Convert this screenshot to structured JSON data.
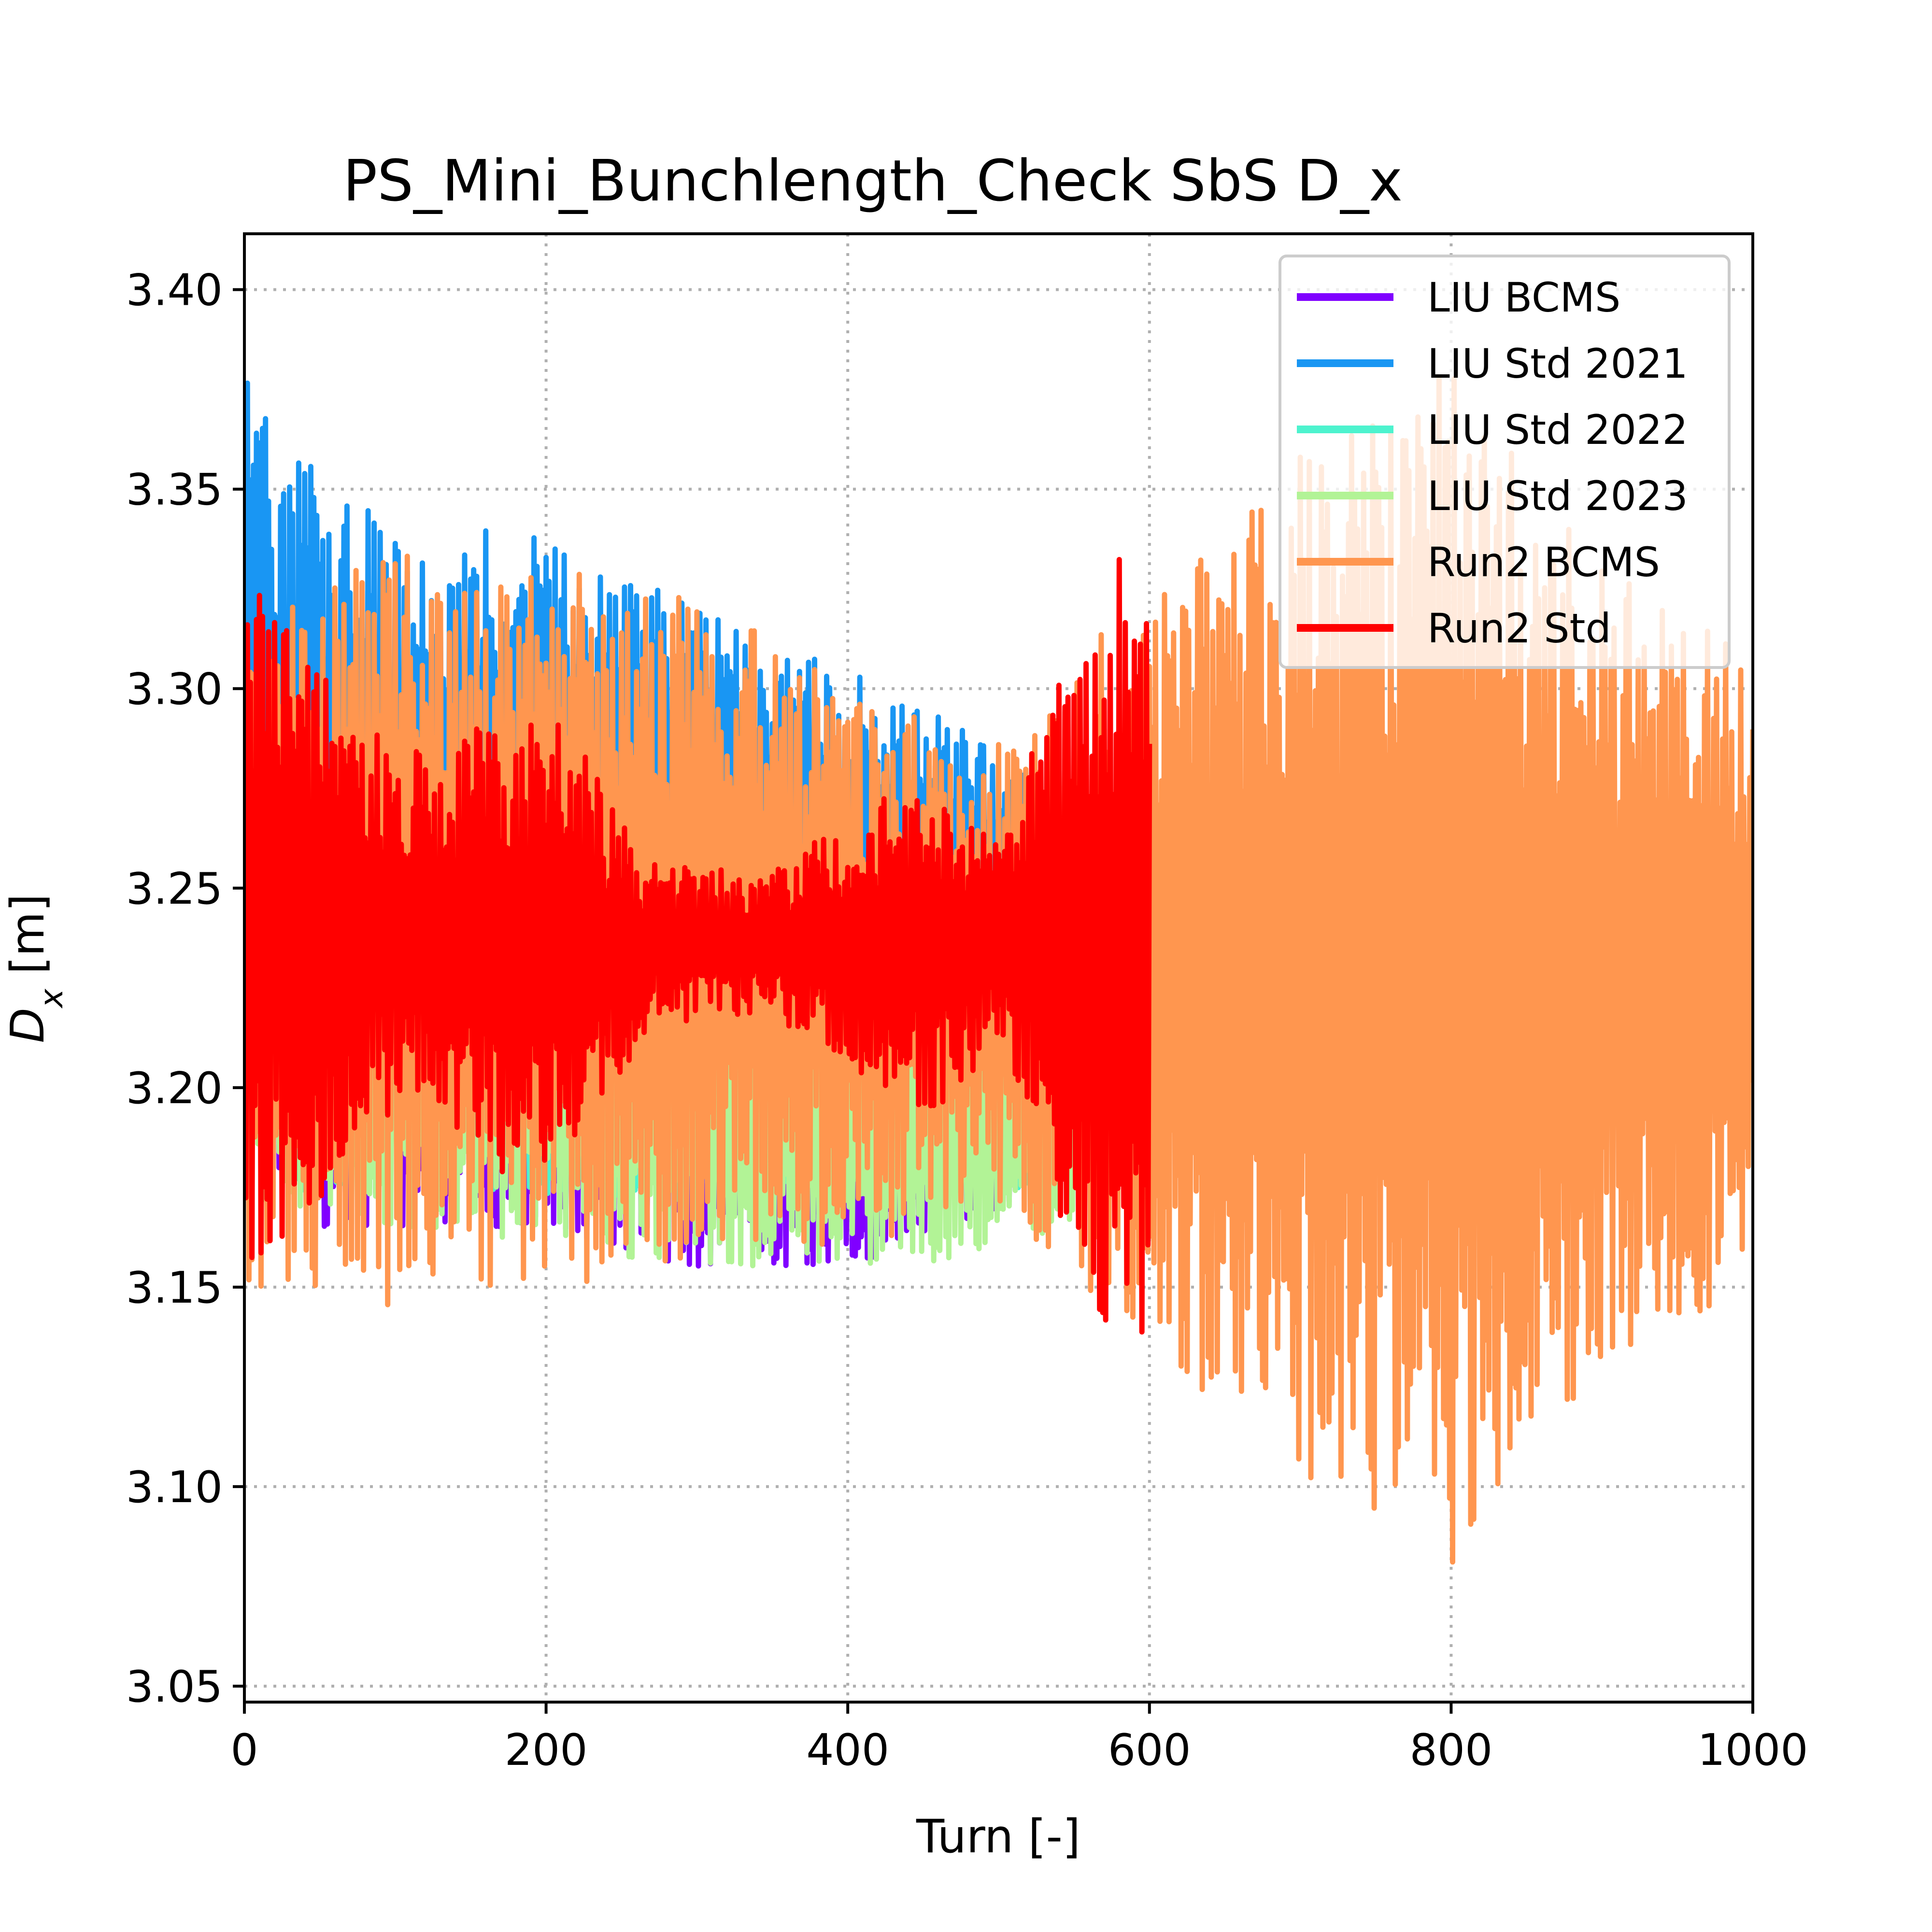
{
  "chart_data": {
    "type": "line",
    "title": "PS_Mini_Bunchlength_Check SbS D_x",
    "xlabel": "Turn [-]",
    "ylabel_main": "D",
    "ylabel_sub": "x",
    "ylabel_unit": " [m]",
    "xlim": [
      0,
      1000
    ],
    "ylim": [
      3.046,
      3.414
    ],
    "xticks": [
      0,
      200,
      400,
      600,
      800,
      1000
    ],
    "xtick_labels": [
      "0",
      "200",
      "400",
      "600",
      "800",
      "1000"
    ],
    "yticks": [
      3.05,
      3.1,
      3.15,
      3.2,
      3.25,
      3.3,
      3.35,
      3.4
    ],
    "ytick_labels": [
      "3.05",
      "3.10",
      "3.15",
      "3.20",
      "3.25",
      "3.30",
      "3.35",
      "3.40"
    ],
    "grid": true,
    "legend_position": "top-right",
    "series": [
      {
        "name": "LIU BCMS",
        "color": "#8000ff",
        "segments": [
          {
            "x": 0,
            "center": 3.22,
            "amp": 0.04
          },
          {
            "x": 50,
            "center": 3.205,
            "amp": 0.04
          },
          {
            "x": 150,
            "center": 3.2,
            "amp": 0.035
          },
          {
            "x": 300,
            "center": 3.19,
            "amp": 0.035
          },
          {
            "x": 400,
            "center": 3.185,
            "amp": 0.03
          },
          {
            "x": 500,
            "center": 3.19,
            "amp": 0.02
          },
          {
            "x": 550,
            "center": 3.2,
            "amp": 0.02
          }
        ]
      },
      {
        "name": "LIU Std 2021",
        "color": "#1996f3",
        "segments": [
          {
            "x": 0,
            "center": 3.29,
            "amp": 0.09
          },
          {
            "x": 100,
            "center": 3.27,
            "amp": 0.07
          },
          {
            "x": 200,
            "center": 3.28,
            "amp": 0.06
          },
          {
            "x": 300,
            "center": 3.27,
            "amp": 0.05
          },
          {
            "x": 400,
            "center": 3.26,
            "amp": 0.045
          },
          {
            "x": 500,
            "center": 3.25,
            "amp": 0.035
          },
          {
            "x": 550,
            "center": 3.24,
            "amp": 0.03
          }
        ]
      },
      {
        "name": "LIU Std 2022",
        "color": "#4df3ce",
        "segments": [
          {
            "x": 0,
            "center": 3.215,
            "amp": 0.045
          },
          {
            "x": 100,
            "center": 3.21,
            "amp": 0.035
          },
          {
            "x": 300,
            "center": 3.205,
            "amp": 0.035
          },
          {
            "x": 450,
            "center": 3.2,
            "amp": 0.03
          },
          {
            "x": 550,
            "center": 3.2,
            "amp": 0.025
          }
        ]
      },
      {
        "name": "LIU Std 2023",
        "color": "#b2f396",
        "segments": [
          {
            "x": 0,
            "center": 3.21,
            "amp": 0.045
          },
          {
            "x": 100,
            "center": 3.205,
            "amp": 0.04
          },
          {
            "x": 300,
            "center": 3.195,
            "amp": 0.04
          },
          {
            "x": 450,
            "center": 3.19,
            "amp": 0.035
          },
          {
            "x": 550,
            "center": 3.195,
            "amp": 0.03
          }
        ]
      },
      {
        "name": "Run2 BCMS",
        "color": "#ff964f",
        "segments": [
          {
            "x": 0,
            "center": 3.23,
            "amp": 0.085
          },
          {
            "x": 100,
            "center": 3.24,
            "amp": 0.095
          },
          {
            "x": 200,
            "center": 3.24,
            "amp": 0.09
          },
          {
            "x": 300,
            "center": 3.24,
            "amp": 0.085
          },
          {
            "x": 400,
            "center": 3.23,
            "amp": 0.07
          },
          {
            "x": 500,
            "center": 3.23,
            "amp": 0.06
          },
          {
            "x": 600,
            "center": 3.23,
            "amp": 0.095
          },
          {
            "x": 700,
            "center": 3.23,
            "amp": 0.13
          },
          {
            "x": 800,
            "center": 3.23,
            "amp": 0.15
          },
          {
            "x": 900,
            "center": 3.23,
            "amp": 0.1
          },
          {
            "x": 1000,
            "center": 3.23,
            "amp": 0.08
          }
        ]
      },
      {
        "name": "Run2 Std",
        "color": "#ff0000",
        "segments": [
          {
            "x": 0,
            "center": 3.24,
            "amp": 0.09
          },
          {
            "x": 100,
            "center": 3.24,
            "amp": 0.045
          },
          {
            "x": 200,
            "center": 3.235,
            "amp": 0.065
          },
          {
            "x": 270,
            "center": 3.236,
            "amp": 0.02
          },
          {
            "x": 350,
            "center": 3.236,
            "amp": 0.018
          },
          {
            "x": 450,
            "center": 3.236,
            "amp": 0.045
          },
          {
            "x": 500,
            "center": 3.236,
            "amp": 0.025
          },
          {
            "x": 580,
            "center": 3.236,
            "amp": 0.11
          },
          {
            "x": 600,
            "center": 3.236,
            "amp": 0.1
          }
        ]
      }
    ]
  }
}
